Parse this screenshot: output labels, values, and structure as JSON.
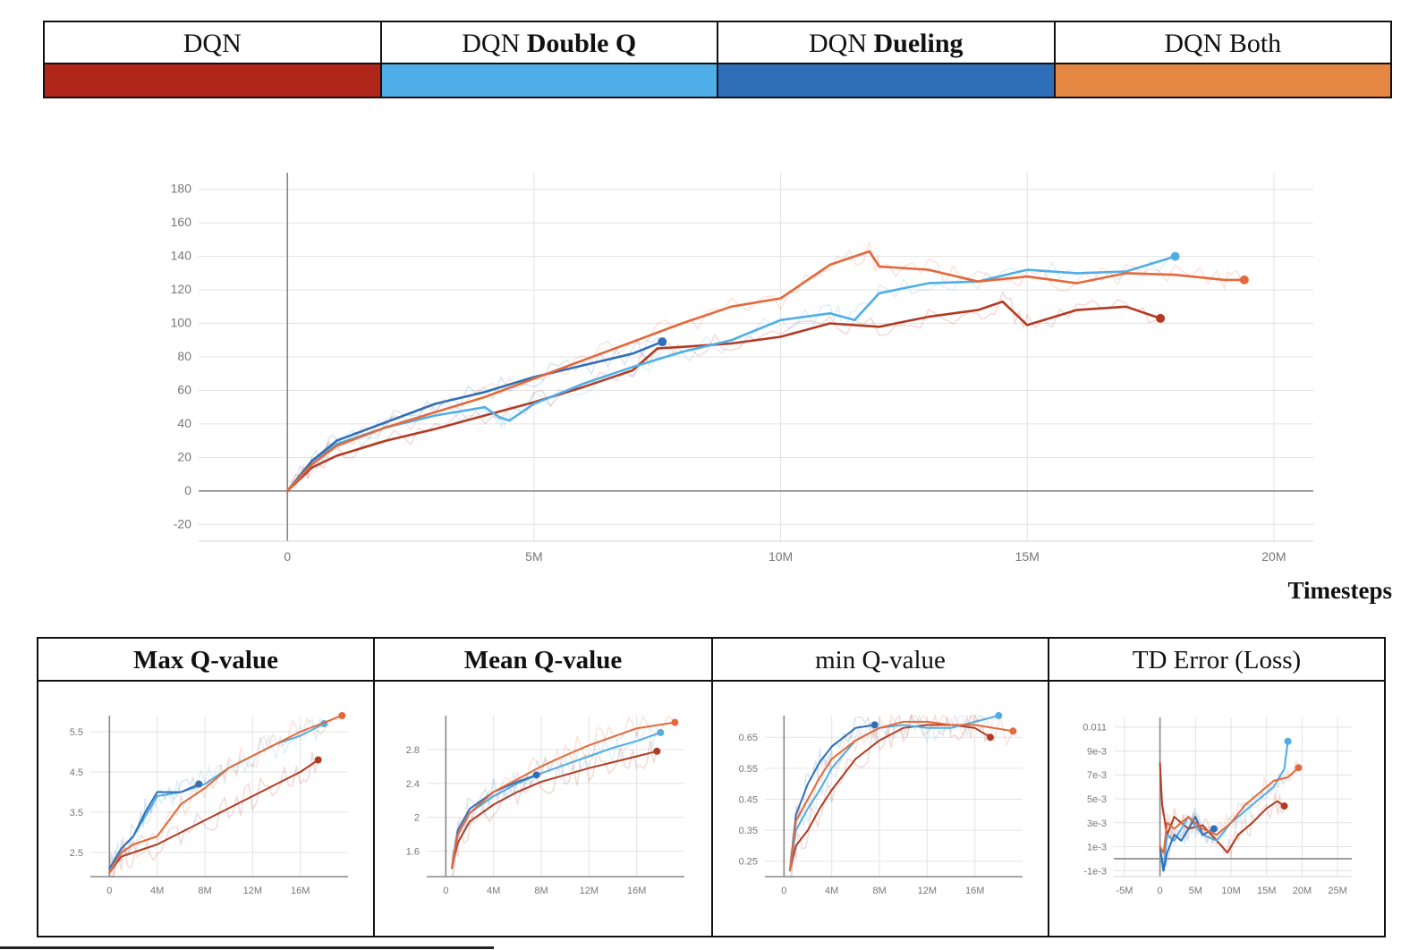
{
  "legend": [
    {
      "prefix": "DQN",
      "bold": "",
      "color": "#b0261b"
    },
    {
      "prefix": "DQN ",
      "bold": "Double Q",
      "color": "#4faee8"
    },
    {
      "prefix": "DQN ",
      "bold": "Dueling",
      "color": "#2f6fb9"
    },
    {
      "prefix": "DQN Both",
      "bold": "",
      "color": "#e38743"
    }
  ],
  "timesteps_label": "Timesteps",
  "chart_data": [
    {
      "type": "line",
      "title": "",
      "xlabel": "Timesteps",
      "ylabel": "",
      "xlim": [
        -1800000,
        20800000
      ],
      "ylim": [
        -30,
        190
      ],
      "x_ticks": [
        0,
        5000000,
        10000000,
        15000000,
        20000000
      ],
      "x_tick_labels": [
        "0",
        "5M",
        "10M",
        "15M",
        "20M"
      ],
      "y_ticks": [
        -20,
        0,
        20,
        40,
        60,
        80,
        100,
        120,
        140,
        160,
        180
      ],
      "y_tick_labels": [
        "-20",
        "0",
        "20",
        "40",
        "60",
        "80",
        "100",
        "120",
        "140",
        "160",
        "180"
      ],
      "grid": true,
      "series": [
        {
          "name": "DQN",
          "color": "#b23a22",
          "x": [
            0,
            500000,
            1000000,
            2000000,
            3000000,
            4000000,
            5000000,
            6000000,
            7000000,
            7500000,
            8000000,
            9000000,
            10000000,
            11000000,
            12000000,
            13000000,
            14000000,
            14500000,
            15000000,
            16000000,
            17000000,
            17700000
          ],
          "y": [
            0,
            14,
            21,
            30,
            37,
            45,
            53,
            62,
            72,
            85,
            86,
            88,
            92,
            100,
            98,
            104,
            108,
            113,
            99,
            108,
            110,
            103
          ]
        },
        {
          "name": "DQN Double Q",
          "color": "#4faee8",
          "x": [
            0,
            500000,
            1000000,
            2000000,
            3000000,
            4000000,
            4300000,
            4500000,
            5000000,
            6000000,
            7000000,
            8000000,
            9000000,
            10000000,
            11000000,
            11500000,
            12000000,
            13000000,
            14000000,
            15000000,
            16000000,
            17000000,
            18000000
          ],
          "y": [
            0,
            18,
            28,
            38,
            45,
            50,
            44,
            42,
            52,
            64,
            74,
            83,
            90,
            102,
            106,
            102,
            118,
            124,
            125,
            132,
            130,
            131,
            140
          ]
        },
        {
          "name": "DQN Dueling",
          "color": "#2f6fb9",
          "x": [
            0,
            500000,
            1000000,
            2000000,
            3000000,
            4000000,
            5000000,
            6000000,
            7000000,
            7600000
          ],
          "y": [
            0,
            18,
            30,
            41,
            52,
            59,
            68,
            75,
            82,
            89
          ]
        },
        {
          "name": "DQN Both",
          "color": "#e4683a",
          "x": [
            0,
            500000,
            1000000,
            2000000,
            3000000,
            4000000,
            5000000,
            6000000,
            7000000,
            8000000,
            9000000,
            10000000,
            11000000,
            11800000,
            12000000,
            13000000,
            14000000,
            15000000,
            16000000,
            17000000,
            18000000,
            19000000,
            19400000
          ],
          "y": [
            0,
            16,
            27,
            38,
            47,
            56,
            67,
            78,
            89,
            100,
            110,
            115,
            135,
            143,
            134,
            132,
            125,
            128,
            124,
            130,
            129,
            126,
            126
          ]
        }
      ]
    },
    {
      "type": "line",
      "title": "Max Q-value",
      "title_bold": true,
      "xlim": [
        -1600000,
        20000000
      ],
      "ylim": [
        1.9,
        5.9
      ],
      "x_ticks": [
        0,
        4000000,
        8000000,
        12000000,
        16000000
      ],
      "x_tick_labels": [
        "0",
        "4M",
        "8M",
        "12M",
        "16M"
      ],
      "y_ticks": [
        2.5,
        3.5,
        4.5,
        5.5
      ],
      "y_tick_labels": [
        "2.5",
        "3.5",
        "4.5",
        "5.5"
      ],
      "grid": true,
      "series": [
        {
          "name": "DQN",
          "color": "#b23a22",
          "x": [
            0,
            1000000,
            2000000,
            4000000,
            6000000,
            8000000,
            10000000,
            12000000,
            14000000,
            16000000,
            17500000
          ],
          "y": [
            2.0,
            2.4,
            2.5,
            2.7,
            3.0,
            3.3,
            3.6,
            3.9,
            4.2,
            4.5,
            4.8
          ]
        },
        {
          "name": "DQN Double Q",
          "color": "#4faee8",
          "x": [
            0,
            1000000,
            2000000,
            4000000,
            6000000,
            8000000,
            10000000,
            12000000,
            14000000,
            16000000,
            18000000
          ],
          "y": [
            2.1,
            2.6,
            2.9,
            3.9,
            4.0,
            4.2,
            4.6,
            4.9,
            5.2,
            5.4,
            5.7
          ]
        },
        {
          "name": "DQN Dueling",
          "color": "#2f6fb9",
          "x": [
            0,
            1000000,
            2000000,
            3000000,
            4000000,
            6000000,
            7500000
          ],
          "y": [
            2.1,
            2.6,
            2.9,
            3.5,
            4.0,
            4.0,
            4.2
          ]
        },
        {
          "name": "DQN Both",
          "color": "#e4683a",
          "x": [
            0,
            1000000,
            2000000,
            4000000,
            6000000,
            8000000,
            10000000,
            12000000,
            14000000,
            16000000,
            19500000
          ],
          "y": [
            2.0,
            2.5,
            2.7,
            2.9,
            3.7,
            4.1,
            4.6,
            4.9,
            5.2,
            5.5,
            5.9
          ]
        }
      ]
    },
    {
      "type": "line",
      "title": "Mean Q-value",
      "title_bold": true,
      "xlim": [
        -1600000,
        20000000
      ],
      "ylim": [
        1.3,
        3.2
      ],
      "x_ticks": [
        0,
        4000000,
        8000000,
        12000000,
        16000000
      ],
      "x_tick_labels": [
        "0",
        "4M",
        "8M",
        "12M",
        "16M"
      ],
      "y_ticks": [
        1.6,
        2,
        2.4,
        2.8
      ],
      "y_tick_labels": [
        "1.6",
        "2",
        "2.4",
        "2.8"
      ],
      "grid": true,
      "series": [
        {
          "name": "DQN",
          "color": "#b23a22",
          "x": [
            500000,
            1000000,
            2000000,
            4000000,
            6000000,
            8000000,
            10000000,
            12000000,
            14000000,
            16000000,
            17700000
          ],
          "y": [
            1.4,
            1.7,
            1.95,
            2.15,
            2.3,
            2.42,
            2.5,
            2.58,
            2.65,
            2.72,
            2.78
          ]
        },
        {
          "name": "DQN Double Q",
          "color": "#4faee8",
          "x": [
            500000,
            1000000,
            2000000,
            4000000,
            6000000,
            8000000,
            10000000,
            12000000,
            14000000,
            16000000,
            18000000
          ],
          "y": [
            1.4,
            1.8,
            2.05,
            2.25,
            2.4,
            2.52,
            2.62,
            2.72,
            2.82,
            2.9,
            3.0
          ]
        },
        {
          "name": "DQN Dueling",
          "color": "#2f6fb9",
          "x": [
            500000,
            1000000,
            2000000,
            4000000,
            6000000,
            7600000
          ],
          "y": [
            1.4,
            1.85,
            2.1,
            2.3,
            2.42,
            2.5
          ]
        },
        {
          "name": "DQN Both",
          "color": "#e4683a",
          "x": [
            500000,
            1000000,
            2000000,
            4000000,
            6000000,
            8000000,
            10000000,
            12000000,
            14000000,
            16000000,
            19200000
          ],
          "y": [
            1.4,
            1.8,
            2.05,
            2.3,
            2.45,
            2.6,
            2.73,
            2.85,
            2.95,
            3.05,
            3.12
          ]
        }
      ]
    },
    {
      "type": "line",
      "title": "min Q-value",
      "title_bold": false,
      "xlim": [
        -1600000,
        20000000
      ],
      "ylim": [
        0.2,
        0.72
      ],
      "x_ticks": [
        0,
        4000000,
        8000000,
        12000000,
        16000000
      ],
      "x_tick_labels": [
        "0",
        "4M",
        "8M",
        "12M",
        "16M"
      ],
      "y_ticks": [
        0.25,
        0.35,
        0.45,
        0.55,
        0.65
      ],
      "y_tick_labels": [
        "0.25",
        "0.35",
        "0.45",
        "0.55",
        "0.65"
      ],
      "grid": true,
      "series": [
        {
          "name": "DQN",
          "color": "#b23a22",
          "x": [
            500000,
            1000000,
            2000000,
            3000000,
            4000000,
            6000000,
            8000000,
            10000000,
            12000000,
            14000000,
            16000000,
            17300000
          ],
          "y": [
            0.22,
            0.3,
            0.35,
            0.42,
            0.48,
            0.58,
            0.64,
            0.68,
            0.69,
            0.69,
            0.68,
            0.65
          ]
        },
        {
          "name": "DQN Double Q",
          "color": "#4faee8",
          "x": [
            500000,
            1000000,
            2000000,
            3000000,
            4000000,
            6000000,
            8000000,
            10000000,
            12000000,
            14000000,
            16000000,
            18000000
          ],
          "y": [
            0.22,
            0.35,
            0.42,
            0.48,
            0.55,
            0.64,
            0.68,
            0.69,
            0.68,
            0.68,
            0.7,
            0.72
          ]
        },
        {
          "name": "DQN Dueling",
          "color": "#2f6fb9",
          "x": [
            500000,
            1000000,
            2000000,
            3000000,
            4000000,
            6000000,
            7600000
          ],
          "y": [
            0.22,
            0.4,
            0.5,
            0.57,
            0.62,
            0.68,
            0.69
          ]
        },
        {
          "name": "DQN Both",
          "color": "#e4683a",
          "x": [
            500000,
            1000000,
            2000000,
            3000000,
            4000000,
            6000000,
            8000000,
            10000000,
            12000000,
            14000000,
            16000000,
            19200000
          ],
          "y": [
            0.22,
            0.38,
            0.45,
            0.52,
            0.58,
            0.64,
            0.68,
            0.7,
            0.7,
            0.69,
            0.69,
            0.67
          ]
        }
      ]
    },
    {
      "type": "line",
      "title": "TD Error (Loss)",
      "title_bold": false,
      "xlim": [
        -6500000,
        27000000
      ],
      "ylim": [
        -0.0015,
        0.0118
      ],
      "x_ticks": [
        -5000000,
        0,
        5000000,
        10000000,
        15000000,
        20000000,
        25000000
      ],
      "x_tick_labels": [
        "-5M",
        "0",
        "5M",
        "10M",
        "15M",
        "20M",
        "25M"
      ],
      "y_ticks": [
        -0.001,
        0.001,
        0.003,
        0.005,
        0.007,
        0.009,
        0.011
      ],
      "y_tick_labels": [
        "-1e-3",
        "1e-3",
        "3e-3",
        "5e-3",
        "7e-3",
        "9e-3",
        "0.011"
      ],
      "grid": true,
      "series": [
        {
          "name": "DQN",
          "color": "#b23a22",
          "x": [
            0,
            300000,
            1000000,
            2000000,
            4000000,
            6000000,
            8000000,
            9500000,
            11000000,
            13000000,
            15000000,
            16500000,
            17500000
          ],
          "y": [
            0.008,
            0.0045,
            0.002,
            0.0035,
            0.0025,
            0.0028,
            0.0015,
            0.0005,
            0.002,
            0.003,
            0.0042,
            0.0048,
            0.0044
          ]
        },
        {
          "name": "DQN Double Q",
          "color": "#4faee8",
          "x": [
            0,
            500000,
            1000000,
            2000000,
            4000000,
            6000000,
            8000000,
            10000000,
            12000000,
            14000000,
            16000000,
            17500000,
            18000000
          ],
          "y": [
            0.0005,
            -0.001,
            0.002,
            0.0015,
            0.0035,
            0.002,
            0.0015,
            0.003,
            0.004,
            0.005,
            0.006,
            0.0075,
            0.0098
          ]
        },
        {
          "name": "DQN Dueling",
          "color": "#2f6fb9",
          "x": [
            0,
            500000,
            1000000,
            2000000,
            3000000,
            4000000,
            5000000,
            6000000,
            7600000
          ],
          "y": [
            0.001,
            -0.001,
            0.0005,
            0.002,
            0.0015,
            0.0025,
            0.0035,
            0.002,
            0.0025
          ]
        },
        {
          "name": "DQN Both",
          "color": "#e4683a",
          "x": [
            0,
            500000,
            1000000,
            2000000,
            4000000,
            6000000,
            8000000,
            10000000,
            12000000,
            14000000,
            16000000,
            18000000,
            19500000
          ],
          "y": [
            0.001,
            0.0005,
            0.003,
            0.0025,
            0.0035,
            0.0025,
            0.002,
            0.003,
            0.0045,
            0.0055,
            0.0065,
            0.0068,
            0.0076
          ]
        }
      ]
    }
  ]
}
